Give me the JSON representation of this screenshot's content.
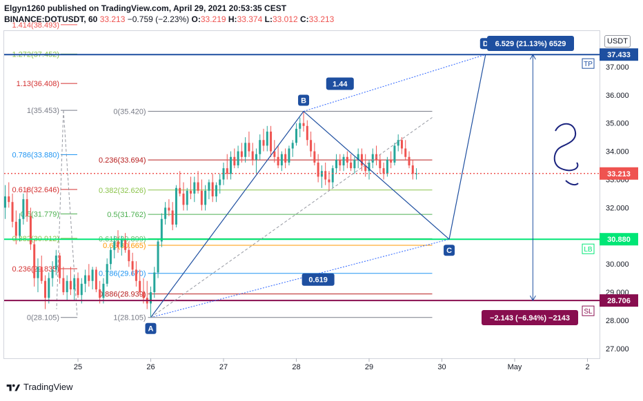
{
  "header": {
    "publisher": "Elgyn1260 published on TradingView.com, April 29, 2021 20:53:35 CEST",
    "symbol": "BINANCE:DOTUSDT, 60",
    "last": "33.213",
    "change": "−0.759 (−2.23%)",
    "o_label": "O:",
    "o_value": "33.219",
    "h_label": "H:",
    "h_value": "33.374",
    "l_label": "L:",
    "l_value": "33.012",
    "c_label": "C:",
    "c_value": "33.213"
  },
  "currency_badge": "USDT",
  "footer": {
    "brand": "TradingView",
    "logo_icon": "tradingview-logo-icon"
  },
  "colors": {
    "up": "#26a69a",
    "down": "#ef5350",
    "blue_line": "#1e4fa0",
    "tp_line": "#1e4fa0",
    "lb_line": "#00e676",
    "sl_line": "#880e4f",
    "last_price": "#ef5350"
  },
  "chart_data": {
    "type": "candlestick",
    "symbol": "DOTUSDT",
    "x_ticks": [
      "25",
      "26",
      "27",
      "28",
      "29",
      "30",
      "May",
      "2"
    ],
    "y_ticks": [
      "27.000",
      "28.000",
      "29.000",
      "30.000",
      "32.000",
      "33.000",
      "34.000",
      "35.000",
      "36.000",
      "37.000"
    ],
    "ylim": [
      26.6,
      38.3
    ],
    "last_price": {
      "label": "33.213",
      "value": 33.213
    },
    "levels": [
      {
        "name": "TP",
        "label": "37.433",
        "value": 37.433
      },
      {
        "name": "LB",
        "label": "30.880",
        "value": 30.88
      },
      {
        "name": "SL",
        "label": "28.706",
        "value": 28.706
      }
    ],
    "points": [
      {
        "label": "A",
        "time": 26.0,
        "price": 28.105
      },
      {
        "label": "B",
        "time": 28.1,
        "price": 35.42
      },
      {
        "label": "C",
        "time": 30.1,
        "price": 30.88
      },
      {
        "label": "D",
        "time": 30.6,
        "price": 37.433
      }
    ],
    "ratio_labels": [
      {
        "text": "1.44",
        "time": 28.6,
        "price": 36.4
      },
      {
        "text": "0.619",
        "time": 28.3,
        "price": 29.45
      }
    ],
    "measure_tp": "6.529 (21.13%) 6529",
    "measure_sl": "−2.143 (−6.94%) −2143",
    "fib_retracement_left": [
      {
        "text": "1.414(38.493)",
        "price": 38.493,
        "color": "#ef5350"
      },
      {
        "text": "1.272(37.452)",
        "price": 37.452,
        "color": "#8bc34a"
      },
      {
        "text": "1.13(36.408)",
        "price": 36.408,
        "color": "#d32f2f"
      },
      {
        "text": "1(35.453)",
        "price": 35.453,
        "color": "#787b86"
      },
      {
        "text": "0.786(33.880)",
        "price": 33.88,
        "color": "#2196f3"
      },
      {
        "text": "0.618(32.646)",
        "price": 32.646,
        "color": "#d32f2f"
      },
      {
        "text": "0.5(31.779)",
        "price": 31.779,
        "color": "#4caf50"
      },
      {
        "text": "0.382(30.912)",
        "price": 30.912,
        "color": "#8bc34a"
      },
      {
        "text": "0.236(29.835)",
        "price": 29.835,
        "color": "#d32f2f"
      },
      {
        "text": "0(28.105)",
        "price": 28.105,
        "color": "#787b86"
      }
    ],
    "fib_retracement_main": [
      {
        "text": "0(35.420)",
        "price": 35.42,
        "color": "#787b86"
      },
      {
        "text": "0.236(33.694)",
        "price": 33.694,
        "color": "#b71c1c"
      },
      {
        "text": "0.382(32.626)",
        "price": 32.626,
        "color": "#8bc34a"
      },
      {
        "text": "0.5(31.762)",
        "price": 31.762,
        "color": "#4caf50"
      },
      {
        "text": "0.618(30.899)",
        "price": 30.899,
        "color": "#66bb6a"
      },
      {
        "text": "0.65(30.665)",
        "price": 30.665,
        "color": "#ff9800"
      },
      {
        "text": "0.786(29.670)",
        "price": 29.67,
        "color": "#2196f3"
      },
      {
        "text": "0.886(28.939)",
        "price": 28.939,
        "color": "#b71c1c"
      },
      {
        "text": "1(28.105)",
        "price": 28.105,
        "color": "#787b86"
      }
    ],
    "candles": [
      [
        24.0,
        32.0,
        32.8,
        31.6,
        32.4
      ],
      [
        24.05,
        32.4,
        32.9,
        32.0,
        32.2
      ],
      [
        24.1,
        32.2,
        32.5,
        31.3,
        31.5
      ],
      [
        24.15,
        31.5,
        31.9,
        30.7,
        31.0
      ],
      [
        24.2,
        31.0,
        31.8,
        30.8,
        31.6
      ],
      [
        24.25,
        31.6,
        32.5,
        31.4,
        32.3
      ],
      [
        24.3,
        32.3,
        32.7,
        31.5,
        31.7
      ],
      [
        24.35,
        31.7,
        32.0,
        30.5,
        30.7
      ],
      [
        24.4,
        30.7,
        30.9,
        29.2,
        29.5
      ],
      [
        24.45,
        29.5,
        30.2,
        29.0,
        29.9
      ],
      [
        24.5,
        29.9,
        30.3,
        29.3,
        29.4
      ],
      [
        24.55,
        29.4,
        29.6,
        28.4,
        28.8
      ],
      [
        24.6,
        28.8,
        29.7,
        28.6,
        29.5
      ],
      [
        24.65,
        29.5,
        30.1,
        29.2,
        29.8
      ],
      [
        24.7,
        29.8,
        30.5,
        29.6,
        30.3
      ],
      [
        24.75,
        30.3,
        30.4,
        29.3,
        29.5
      ],
      [
        24.8,
        29.5,
        29.9,
        28.9,
        29.0
      ],
      [
        24.85,
        29.0,
        29.6,
        28.7,
        29.4
      ],
      [
        24.9,
        29.4,
        29.9,
        28.9,
        29.1
      ],
      [
        24.95,
        29.1,
        29.6,
        28.7,
        29.5
      ],
      [
        25.0,
        29.5,
        29.7,
        28.8,
        28.9
      ],
      [
        25.05,
        28.9,
        29.5,
        28.6,
        29.3
      ],
      [
        25.1,
        29.3,
        29.8,
        29.0,
        29.6
      ],
      [
        25.15,
        29.6,
        30.0,
        29.2,
        29.4
      ],
      [
        25.2,
        29.4,
        29.9,
        29.1,
        29.8
      ],
      [
        25.25,
        29.8,
        29.9,
        29.0,
        29.1
      ],
      [
        25.3,
        29.1,
        29.4,
        28.6,
        28.8
      ],
      [
        25.35,
        28.8,
        29.5,
        28.6,
        29.3
      ],
      [
        25.4,
        29.3,
        30.2,
        29.2,
        30.0
      ],
      [
        25.45,
        30.0,
        30.6,
        29.8,
        30.5
      ],
      [
        25.5,
        30.5,
        31.0,
        30.2,
        30.8
      ],
      [
        25.55,
        30.8,
        31.2,
        30.4,
        30.6
      ],
      [
        25.6,
        30.6,
        31.0,
        30.3,
        30.9
      ],
      [
        25.65,
        30.9,
        31.1,
        30.4,
        30.5
      ],
      [
        25.7,
        30.5,
        30.8,
        29.9,
        30.1
      ],
      [
        25.75,
        30.1,
        30.4,
        29.6,
        29.8
      ],
      [
        25.8,
        29.8,
        30.1,
        29.2,
        29.4
      ],
      [
        25.85,
        29.4,
        29.8,
        28.9,
        29.0
      ],
      [
        25.9,
        29.0,
        29.5,
        28.6,
        28.8
      ],
      [
        25.95,
        28.8,
        29.4,
        28.4,
        28.6
      ],
      [
        26.0,
        28.6,
        29.2,
        28.1,
        29.0
      ],
      [
        26.05,
        29.0,
        29.9,
        28.8,
        29.7
      ],
      [
        26.1,
        29.7,
        30.9,
        29.5,
        30.8
      ],
      [
        26.15,
        30.8,
        31.8,
        30.6,
        31.6
      ],
      [
        26.2,
        31.6,
        32.2,
        31.4,
        32.0
      ],
      [
        26.25,
        32.0,
        32.3,
        31.7,
        31.9
      ],
      [
        26.3,
        31.9,
        32.2,
        31.2,
        31.4
      ],
      [
        26.35,
        31.4,
        32.8,
        31.3,
        32.7
      ],
      [
        26.4,
        32.7,
        33.3,
        32.4,
        32.5
      ],
      [
        26.45,
        32.5,
        32.9,
        31.9,
        32.1
      ],
      [
        26.5,
        32.1,
        32.7,
        31.9,
        32.6
      ],
      [
        26.55,
        32.6,
        33.1,
        32.3,
        32.5
      ],
      [
        26.6,
        32.5,
        33.1,
        32.2,
        32.9
      ],
      [
        26.65,
        32.9,
        33.3,
        32.5,
        32.6
      ],
      [
        26.7,
        32.6,
        33.0,
        31.9,
        32.1
      ],
      [
        26.75,
        32.1,
        32.8,
        31.9,
        32.6
      ],
      [
        26.8,
        32.6,
        33.0,
        32.3,
        32.9
      ],
      [
        26.85,
        32.9,
        33.2,
        32.2,
        32.4
      ],
      [
        26.9,
        32.4,
        32.9,
        32.2,
        32.8
      ],
      [
        26.95,
        32.8,
        33.2,
        32.5,
        33.0
      ],
      [
        27.0,
        33.0,
        33.6,
        32.8,
        33.4
      ],
      [
        27.05,
        33.4,
        33.9,
        33.0,
        33.2
      ],
      [
        27.1,
        33.2,
        34.0,
        33.0,
        33.8
      ],
      [
        27.15,
        33.8,
        34.1,
        33.4,
        33.5
      ],
      [
        27.2,
        33.5,
        34.2,
        33.4,
        34.0
      ],
      [
        27.25,
        34.0,
        34.3,
        33.6,
        33.8
      ],
      [
        27.3,
        33.8,
        34.5,
        33.6,
        34.3
      ],
      [
        27.35,
        34.3,
        34.7,
        33.8,
        34.0
      ],
      [
        27.4,
        34.0,
        34.3,
        33.5,
        33.7
      ],
      [
        27.45,
        33.7,
        34.1,
        33.2,
        33.9
      ],
      [
        27.5,
        33.9,
        34.6,
        33.7,
        34.4
      ],
      [
        27.55,
        34.4,
        34.8,
        34.0,
        34.2
      ],
      [
        27.6,
        34.2,
        34.9,
        34.0,
        34.7
      ],
      [
        27.65,
        34.7,
        34.9,
        33.8,
        34.0
      ],
      [
        27.7,
        34.0,
        34.4,
        33.6,
        33.8
      ],
      [
        27.75,
        33.8,
        34.2,
        33.4,
        33.5
      ],
      [
        27.8,
        33.5,
        34.0,
        33.3,
        33.9
      ],
      [
        27.85,
        33.9,
        34.1,
        33.4,
        33.6
      ],
      [
        27.9,
        33.6,
        34.2,
        33.5,
        34.1
      ],
      [
        27.95,
        34.1,
        34.4,
        33.8,
        34.3
      ],
      [
        28.0,
        34.3,
        35.0,
        34.2,
        34.8
      ],
      [
        28.05,
        34.8,
        35.2,
        34.5,
        35.0
      ],
      [
        28.1,
        35.0,
        35.42,
        34.7,
        34.9
      ],
      [
        28.15,
        34.9,
        35.1,
        34.2,
        34.4
      ],
      [
        28.2,
        34.4,
        34.7,
        33.8,
        34.0
      ],
      [
        28.25,
        34.0,
        34.3,
        33.5,
        33.6
      ],
      [
        28.3,
        33.6,
        33.9,
        32.9,
        33.1
      ],
      [
        28.35,
        33.1,
        33.5,
        32.7,
        33.3
      ],
      [
        28.4,
        33.3,
        33.6,
        32.8,
        33.0
      ],
      [
        28.45,
        33.0,
        33.3,
        32.6,
        32.9
      ],
      [
        28.5,
        32.9,
        33.5,
        32.7,
        33.4
      ],
      [
        28.55,
        33.4,
        33.9,
        33.2,
        33.7
      ],
      [
        28.6,
        33.7,
        33.9,
        33.3,
        33.5
      ],
      [
        28.65,
        33.5,
        33.9,
        33.3,
        33.8
      ],
      [
        28.7,
        33.8,
        34.0,
        33.4,
        33.6
      ],
      [
        28.75,
        33.6,
        33.9,
        33.3,
        33.4
      ],
      [
        28.8,
        33.4,
        33.8,
        33.2,
        33.7
      ],
      [
        28.85,
        33.7,
        34.1,
        33.4,
        33.9
      ],
      [
        28.9,
        33.9,
        34.1,
        33.3,
        33.5
      ],
      [
        28.95,
        33.5,
        33.9,
        33.1,
        33.3
      ],
      [
        29.0,
        33.3,
        33.7,
        33.0,
        33.6
      ],
      [
        29.05,
        33.6,
        34.1,
        33.4,
        33.9
      ],
      [
        29.1,
        33.9,
        34.2,
        33.5,
        33.7
      ],
      [
        29.15,
        33.7,
        33.9,
        33.2,
        33.4
      ],
      [
        29.2,
        33.4,
        33.6,
        33.0,
        33.2
      ],
      [
        29.25,
        33.2,
        33.8,
        33.1,
        33.7
      ],
      [
        29.3,
        33.7,
        34.0,
        33.4,
        33.6
      ],
      [
        29.35,
        33.6,
        34.3,
        33.5,
        34.2
      ],
      [
        29.4,
        34.2,
        34.6,
        34.0,
        34.4
      ],
      [
        29.45,
        34.4,
        34.5,
        33.9,
        34.1
      ],
      [
        29.5,
        34.1,
        34.4,
        33.7,
        33.8
      ],
      [
        29.55,
        33.8,
        34.0,
        33.4,
        33.5
      ],
      [
        29.6,
        33.5,
        33.7,
        33.0,
        33.2
      ],
      [
        29.65,
        33.2,
        33.4,
        33.0,
        33.213
      ]
    ]
  }
}
